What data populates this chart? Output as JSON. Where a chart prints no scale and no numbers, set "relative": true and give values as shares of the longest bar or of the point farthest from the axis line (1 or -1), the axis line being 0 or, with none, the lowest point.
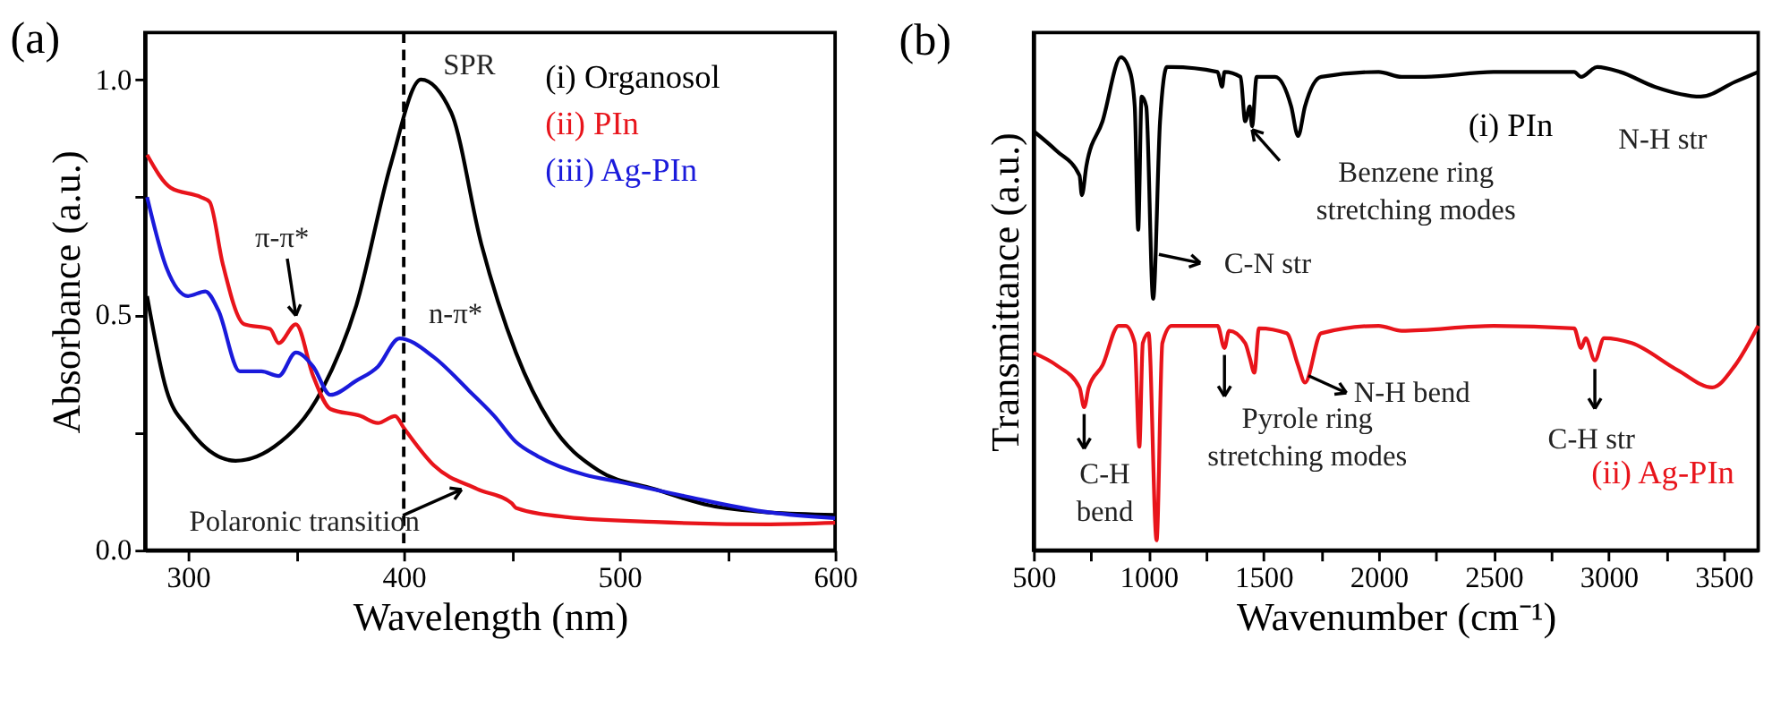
{
  "chart_data": [
    {
      "type": "line",
      "title": "(a)",
      "xlabel": "Wavelength (nm)",
      "ylabel": "Absorbance (a.u.)",
      "xlim": [
        280,
        600
      ],
      "xticks": [
        300,
        {
          "value": 350,
          "label": null
        },
        400,
        {
          "value": 450,
          "label": null
        },
        500,
        {
          "value": 550,
          "label": null
        },
        600
      ],
      "ylim": [
        0,
        1.1
      ],
      "yticks": [
        {
          "value": 0,
          "label": "0.0"
        },
        {
          "value": 0.25,
          "label": null
        },
        0.5,
        {
          "value": 0.75,
          "label": null
        },
        {
          "value": 1,
          "label": "1.0"
        }
      ],
      "grid": false,
      "legend": "top right",
      "marker": "none",
      "line_style": "solid",
      "series": [
        {
          "name": "(i) Organosol",
          "color": "#000000",
          "x": [
            281,
            290,
            300,
            322,
            340,
            362,
            378,
            394,
            408,
            422,
            436,
            452,
            468,
            490,
            516,
            542,
            570,
            600
          ],
          "values": [
            0.54,
            0.34,
            0.26,
            0.19,
            0.22,
            0.34,
            0.52,
            0.82,
            1.0,
            0.93,
            0.65,
            0.42,
            0.27,
            0.17,
            0.13,
            0.095,
            0.08,
            0.075
          ]
        },
        {
          "name": "(ii) PIn",
          "color": "#e8141b",
          "x": [
            281,
            292,
            306,
            310,
            316,
            326,
            338,
            342,
            350,
            358,
            366,
            380,
            388,
            396,
            400,
            414,
            434,
            450,
            452,
            476,
            516,
            570,
            600
          ],
          "values": [
            0.84,
            0.77,
            0.75,
            0.74,
            0.61,
            0.48,
            0.47,
            0.44,
            0.48,
            0.37,
            0.3,
            0.285,
            0.27,
            0.285,
            0.26,
            0.18,
            0.13,
            0.1,
            0.09,
            0.07,
            0.06,
            0.055,
            0.058
          ]
        },
        {
          "name": "(iii) Ag-PIn",
          "color": "#1a1adb",
          "x": [
            281,
            290,
            300,
            308,
            314,
            324,
            334,
            342,
            350,
            358,
            366,
            378,
            388,
            398,
            414,
            430,
            442,
            452,
            462,
            484,
            500,
            530,
            570,
            600
          ],
          "values": [
            0.75,
            0.6,
            0.54,
            0.55,
            0.51,
            0.38,
            0.38,
            0.37,
            0.42,
            0.39,
            0.33,
            0.36,
            0.39,
            0.45,
            0.41,
            0.34,
            0.285,
            0.23,
            0.2,
            0.16,
            0.145,
            0.115,
            0.08,
            0.068
          ]
        }
      ],
      "ref_lines": [
        {
          "axis": "x",
          "value": 400,
          "label": null,
          "color": "#000000",
          "line_style": "dashed"
        }
      ],
      "annotations": [
        {
          "text": "SPR",
          "x": 408,
          "y": 1.0
        },
        {
          "text": "π-π*",
          "x": 350,
          "y": 0.48
        },
        {
          "text": "n-π*",
          "x": 400,
          "y": 0.45
        },
        {
          "text": "Polaronic transition",
          "x": 430,
          "y": 0.14
        }
      ]
    },
    {
      "type": "line",
      "title": "(b)",
      "xlabel": "Wavenumber (cm⁻¹)",
      "ylabel": "Transmittance (a.u.)",
      "relative": true,
      "xlim": [
        500,
        3650
      ],
      "xticks": [
        500,
        {
          "value": 750,
          "label": null
        },
        1000,
        {
          "value": 1250,
          "label": null
        },
        1500,
        {
          "value": 1750,
          "label": null
        },
        2000,
        {
          "value": 2250,
          "label": null
        },
        2500,
        {
          "value": 2750,
          "label": null
        },
        3000,
        {
          "value": 3250,
          "label": null
        },
        3500
      ],
      "tick_labels": "x",
      "grid": false,
      "legend": false,
      "marker": "none",
      "line_style": "solid",
      "series": [
        {
          "name": "(i) PIn",
          "color": "#000000",
          "x": [
            500,
            600,
            700,
            710,
            730,
            800,
            880,
            920,
            940,
            955,
            970,
            990,
            1020,
            1050,
            1080,
            1100,
            1300,
            1320,
            1330,
            1400,
            1420,
            1440,
            1450,
            1470,
            1550,
            1620,
            1650,
            1680,
            1750,
            2000,
            2100,
            2200,
            2500,
            2850,
            2880,
            2950,
            3050,
            3200,
            3400,
            3550,
            3650
          ],
          "values": [
            0.85,
            0.81,
            0.76,
            0.72,
            0.78,
            0.87,
            1.0,
            0.97,
            0.9,
            0.65,
            0.92,
            0.9,
            0.51,
            0.87,
            0.98,
            0.98,
            0.97,
            0.94,
            0.97,
            0.96,
            0.87,
            0.9,
            0.86,
            0.96,
            0.96,
            0.9,
            0.84,
            0.9,
            0.96,
            0.97,
            0.96,
            0.96,
            0.97,
            0.97,
            0.96,
            0.98,
            0.97,
            0.94,
            0.92,
            0.95,
            0.97
          ]
        },
        {
          "name": "(ii) Ag-PIn",
          "color": "#e8141b",
          "x": [
            500,
            600,
            700,
            720,
            740,
            800,
            870,
            900,
            940,
            960,
            975,
            1000,
            1035,
            1060,
            1100,
            1300,
            1330,
            1350,
            1420,
            1440,
            1460,
            1480,
            1600,
            1650,
            1680,
            1750,
            2000,
            2100,
            2500,
            2850,
            2880,
            2900,
            2940,
            2980,
            3100,
            3300,
            3450,
            3550,
            3650
          ],
          "values": [
            0.4,
            0.375,
            0.33,
            0.29,
            0.33,
            0.375,
            0.455,
            0.455,
            0.42,
            0.21,
            0.42,
            0.44,
            0.02,
            0.42,
            0.455,
            0.455,
            0.41,
            0.445,
            0.42,
            0.39,
            0.36,
            0.45,
            0.44,
            0.375,
            0.34,
            0.44,
            0.455,
            0.445,
            0.455,
            0.45,
            0.41,
            0.43,
            0.385,
            0.43,
            0.42,
            0.365,
            0.33,
            0.375,
            0.455
          ]
        }
      ],
      "annotations": [
        {
          "text": "Benzene ring\nstretching modes",
          "x": 1450,
          "y": 0.86
        },
        {
          "text": "C-N str",
          "x": 1030,
          "y": 0.6
        },
        {
          "text": "N-H str",
          "x": 3400,
          "y": 0.92
        },
        {
          "text": "Pyrole ring\nstretching modes",
          "x": 1330,
          "y": 0.41
        },
        {
          "text": "N-H bend",
          "x": 1680,
          "y": 0.34
        },
        {
          "text": "C-H\nbend",
          "x": 720,
          "y": 0.29
        },
        {
          "text": "C-H str",
          "x": 2940,
          "y": 0.385
        }
      ]
    }
  ]
}
